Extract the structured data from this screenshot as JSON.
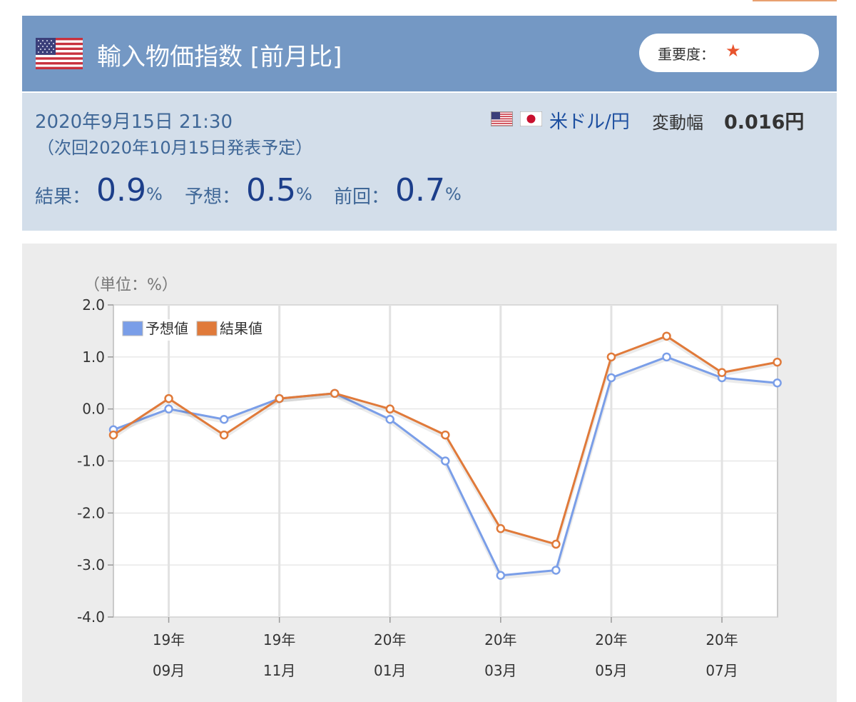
{
  "header": {
    "title": "輸入物価指数 [前月比]",
    "importance_label": "重要度：",
    "importance_star": "★",
    "header_color": "#7498c4"
  },
  "release": {
    "datetime": "2020年9月15日 21:30",
    "next": "（次回2020年10月15日発表予定）",
    "pair_label": "米ドル/円",
    "range_label": "変動幅",
    "range_value": "0.016円"
  },
  "stats": {
    "result_label": "結果：",
    "result_value": "0.9",
    "forecast_label": "予想：",
    "forecast_value": "0.5",
    "previous_label": "前回：",
    "previous_value": "0.7",
    "unit": "%"
  },
  "chart_data": {
    "type": "line",
    "unit_label": "（単位：%）",
    "ylim": [
      -4.0,
      2.0
    ],
    "y_ticks": [
      "2.0",
      "1.0",
      "0.0",
      "-1.0",
      "-2.0",
      "-3.0",
      "-4.0"
    ],
    "x_tick_labels": [
      {
        "year": "19年",
        "month": "09月"
      },
      {
        "year": "19年",
        "month": "11月"
      },
      {
        "year": "20年",
        "month": "01月"
      },
      {
        "year": "20年",
        "month": "03月"
      },
      {
        "year": "20年",
        "month": "05月"
      },
      {
        "year": "20年",
        "month": "07月"
      }
    ],
    "grid": true,
    "legend_position": "top-left",
    "series": [
      {
        "name": "予想値",
        "color": "#7a9ee8",
        "values": [
          -0.4,
          0.0,
          -0.2,
          0.2,
          0.3,
          -0.2,
          -1.0,
          -3.2,
          -3.1,
          0.6,
          1.0,
          0.6,
          0.5
        ]
      },
      {
        "name": "結果値",
        "color": "#e07a3a",
        "values": [
          -0.5,
          0.2,
          -0.5,
          0.2,
          0.3,
          0.0,
          -0.5,
          -2.3,
          -2.6,
          1.0,
          1.4,
          0.7,
          0.9
        ]
      }
    ]
  }
}
